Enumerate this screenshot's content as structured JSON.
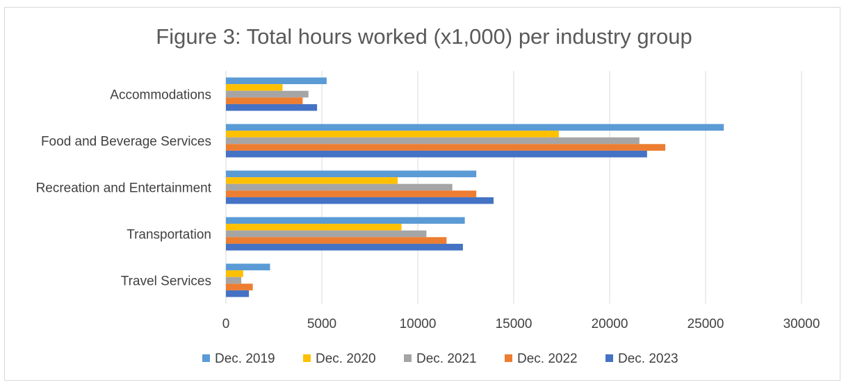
{
  "chart_data": {
    "type": "bar",
    "orientation": "horizontal",
    "title": "Figure 3: Total hours worked (x1,000) per industry group",
    "categories": [
      "Accommodations",
      "Food and Beverage Services",
      "Recreation and Entertainment",
      "Transportation",
      "Travel Services"
    ],
    "series": [
      {
        "name": "Dec. 2019",
        "color": "#5B9BD5",
        "values": [
          5250,
          25950,
          13050,
          12450,
          2300
        ]
      },
      {
        "name": "Dec. 2020",
        "color": "#FFC000",
        "values": [
          2950,
          17350,
          8950,
          9150,
          900
        ]
      },
      {
        "name": "Dec. 2021",
        "color": "#A5A5A5",
        "values": [
          4300,
          21550,
          11800,
          10450,
          800
        ]
      },
      {
        "name": "Dec. 2022",
        "color": "#ED7D31",
        "values": [
          4000,
          22900,
          13050,
          11500,
          1400
        ]
      },
      {
        "name": "Dec. 2023",
        "color": "#4472C4",
        "values": [
          4750,
          21950,
          13950,
          12350,
          1200
        ]
      }
    ],
    "xlim": [
      0,
      30000
    ],
    "xticks": [
      "0",
      "5000",
      "10000",
      "15000",
      "20000",
      "25000",
      "30000"
    ],
    "grid": true,
    "legend_position": "bottom"
  }
}
